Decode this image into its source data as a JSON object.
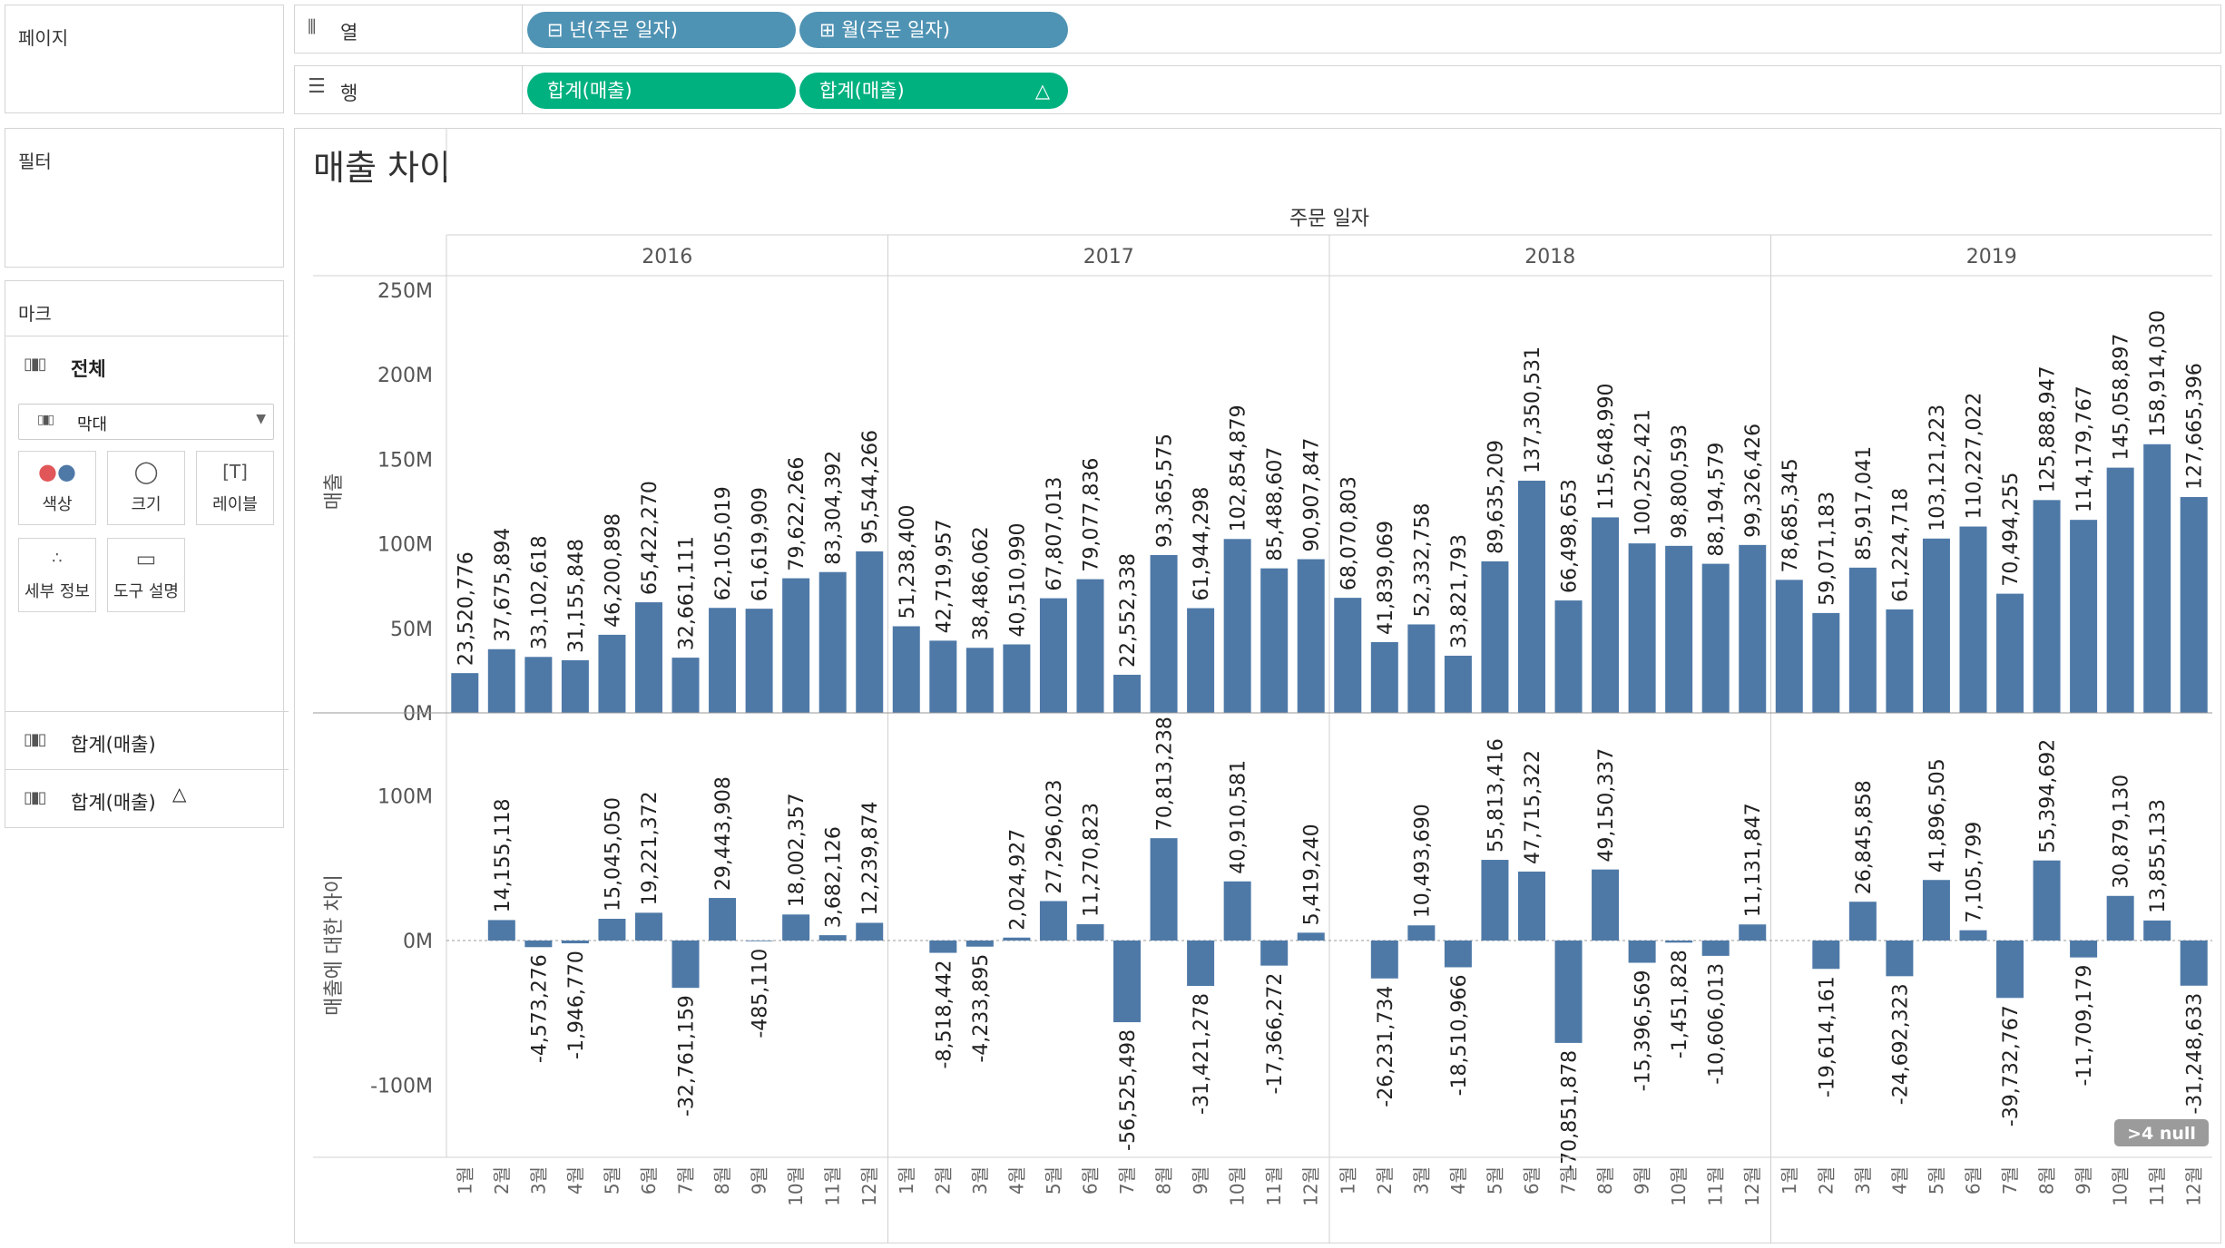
{
  "pages_label": "페이지",
  "filters_label": "필터",
  "marks": {
    "title": "마크",
    "all_label": "전체",
    "mark_type": "막대",
    "buttons": [
      {
        "label": "색상",
        "icon": "color-dots-icon"
      },
      {
        "label": "크기",
        "icon": "size-icon"
      },
      {
        "label": "레이블",
        "icon": "label-icon"
      },
      {
        "label": "세부 정보",
        "icon": "detail-icon"
      },
      {
        "label": "도구 설명",
        "icon": "tooltip-icon"
      }
    ],
    "measures": [
      "합계(매출)",
      "합계(매출)"
    ]
  },
  "columns_shelf": {
    "label": "열",
    "pills": [
      "년(주문 일자)",
      "월(주문 일자)"
    ]
  },
  "rows_shelf": {
    "label": "행",
    "pills": [
      "합계(매출)",
      "합계(매출)"
    ]
  },
  "view_title": "매출 차이",
  "null_badge": ">4 null",
  "chart_data": {
    "type": "bar",
    "header": "주문 일자",
    "years": [
      "2016",
      "2017",
      "2018",
      "2019"
    ],
    "months": [
      "1월",
      "2월",
      "3월",
      "4월",
      "5월",
      "6월",
      "7월",
      "8월",
      "9월",
      "10월",
      "11월",
      "12월"
    ],
    "top": {
      "ylabel": "매출",
      "ylim": [
        0,
        250000000
      ],
      "ticks": [
        {
          "v": 0,
          "label": "0M"
        },
        {
          "v": 50000000,
          "label": "50M"
        },
        {
          "v": 100000000,
          "label": "100M"
        },
        {
          "v": 150000000,
          "label": "150M"
        },
        {
          "v": 200000000,
          "label": "200M"
        },
        {
          "v": 250000000,
          "label": "250M"
        }
      ],
      "values": [
        23520776,
        37675894,
        33102618,
        31155848,
        46200898,
        65422270,
        32661111,
        62105019,
        61619909,
        79622266,
        83304392,
        95544266,
        51238400,
        42719957,
        38486062,
        40510990,
        67807013,
        79077836,
        22552338,
        93365575,
        61944298,
        102854879,
        85488607,
        90907847,
        68070803,
        41839069,
        52332758,
        33821793,
        89635209,
        137350531,
        66498653,
        115648990,
        100252421,
        98800593,
        88194579,
        99326426,
        78685345,
        59071183,
        85917041,
        61224718,
        103121223,
        110227022,
        70494255,
        125888947,
        114179767,
        145058897,
        158914030,
        127665396
      ],
      "labels": [
        "23,520,776",
        "37,675,894",
        "33,102,618",
        "31,155,848",
        "46,200,898",
        "65,422,270",
        "32,661,111",
        "62,105,019",
        "61,619,909",
        "79,622,266",
        "83,304,392",
        "95,544,266",
        "51,238,400",
        "42,719,957",
        "38,486,062",
        "40,510,990",
        "67,807,013",
        "79,077,836",
        "22,552,338",
        "93,365,575",
        "61,944,298",
        "102,854,879",
        "85,488,607",
        "90,907,847",
        "68,070,803",
        "41,839,069",
        "52,332,758",
        "33,821,793",
        "89,635,209",
        "137,350,531",
        "66,498,653",
        "115,648,990",
        "100,252,421",
        "98,800,593",
        "88,194,579",
        "99,326,426",
        "78,685,345",
        "59,071,183",
        "85,917,041",
        "61,224,718",
        "103,121,223",
        "110,227,022",
        "70,494,255",
        "125,888,947",
        "114,179,767",
        "145,058,897",
        "158,914,030",
        "127,665,396"
      ]
    },
    "bottom": {
      "ylabel": "매출에 대한 차이",
      "ylim": [
        -150000000,
        155000000
      ],
      "ticks": [
        {
          "v": -100000000,
          "label": "-100M"
        },
        {
          "v": 0,
          "label": "0M"
        },
        {
          "v": 100000000,
          "label": "100M"
        }
      ],
      "values": [
        null,
        14155118,
        -4573276,
        -1946770,
        15045050,
        19221372,
        -32761159,
        29443908,
        -485110,
        18002357,
        3682126,
        12239874,
        null,
        -8518442,
        -4233895,
        2024927,
        27296023,
        11270823,
        -56525498,
        70813238,
        -31421278,
        40910581,
        -17366272,
        5419240,
        null,
        -26231734,
        10493690,
        -18510966,
        55813416,
        47715322,
        -70851878,
        49150337,
        -15396569,
        -1451828,
        -10606013,
        11131847,
        null,
        -19614161,
        26845858,
        -24692323,
        41896505,
        7105799,
        -39732767,
        55394692,
        -11709179,
        30879130,
        13855133,
        -31248633
      ],
      "labels": [
        "",
        "14,155,118",
        "-4,573,276",
        "-1,946,770",
        "15,045,050",
        "19,221,372",
        "-32,761,159",
        "29,443,908",
        "-485,110",
        "18,002,357",
        "3,682,126",
        "12,239,874",
        "",
        "-8,518,442",
        "-4,233,895",
        "2,024,927",
        "27,296,023",
        "11,270,823",
        "-56,525,498",
        "70,813,238",
        "-31,421,278",
        "40,910,581",
        "-17,366,272",
        "5,419,240",
        "",
        "-26,231,734",
        "10,493,690",
        "-18,510,966",
        "55,813,416",
        "47,715,322",
        "-70,851,878",
        "49,150,337",
        "-15,396,569",
        "-1,451,828",
        "-10,606,013",
        "11,131,847",
        "",
        "-19,614,161",
        "26,845,858",
        "-24,692,323",
        "41,896,505",
        "7,105,799",
        "-39,732,767",
        "55,394,692",
        "-11,709,179",
        "30,879,130",
        "13,855,133",
        "-31,248,633"
      ]
    },
    "bar_color": "#4e79a7"
  }
}
